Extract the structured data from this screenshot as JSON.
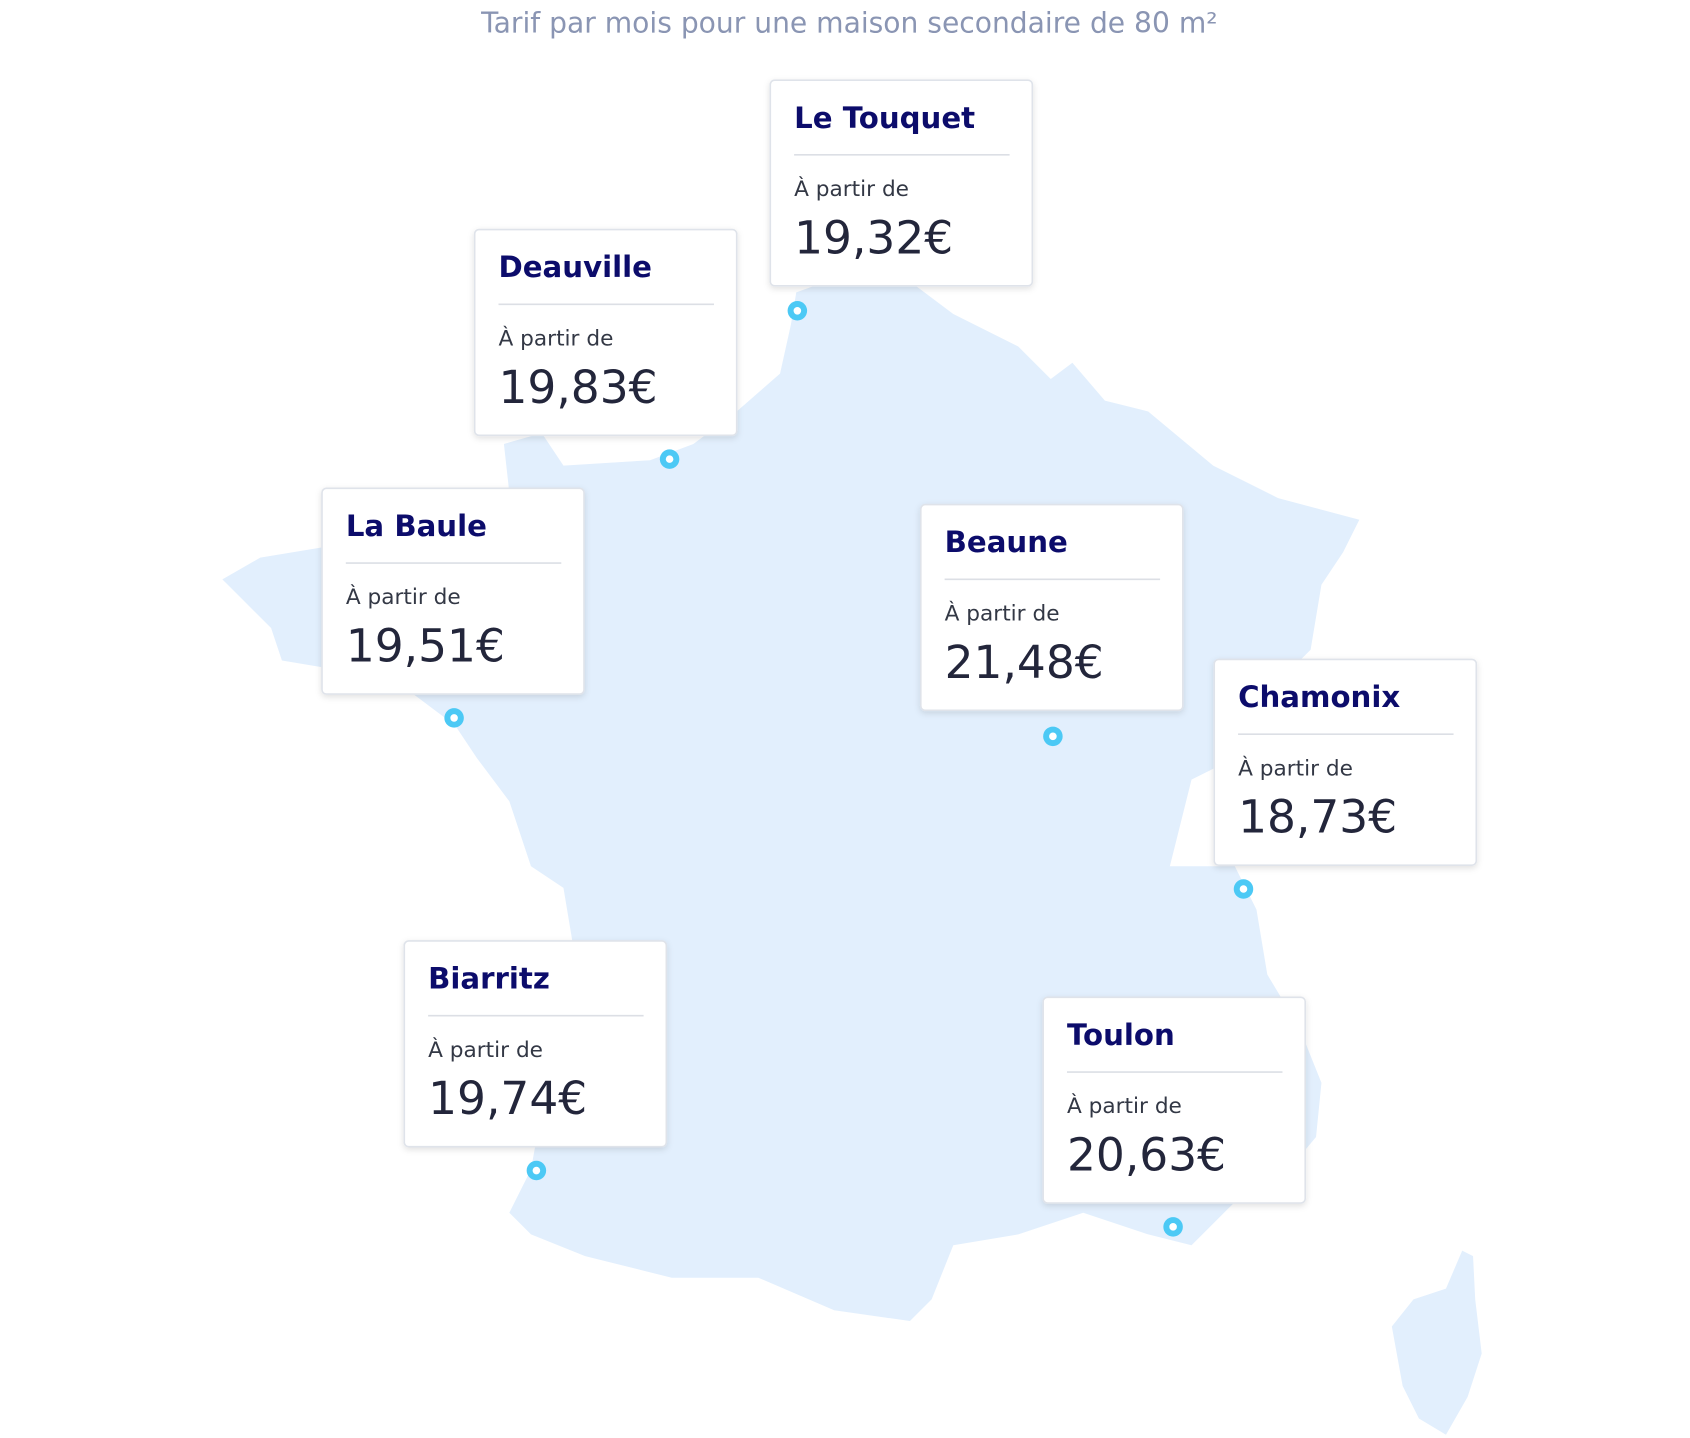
{
  "title": "Tarif par mois pour une maison secondaire de 80 m²",
  "cities": [
    {
      "name": "Le Touquet",
      "from": "À partir de",
      "price": "19,32€"
    },
    {
      "name": "Deauville",
      "from": "À partir de",
      "price": "19,83€"
    },
    {
      "name": "La Baule",
      "from": "À partir de",
      "price": "19,51€"
    },
    {
      "name": "Beaune",
      "from": "À partir de",
      "price": "21,48€"
    },
    {
      "name": "Chamonix",
      "from": "À partir de",
      "price": "18,73€"
    },
    {
      "name": "Biarritz",
      "from": "À partir de",
      "price": "19,74€"
    },
    {
      "name": "Toulon",
      "from": "À partir de",
      "price": "20,63€"
    }
  ]
}
